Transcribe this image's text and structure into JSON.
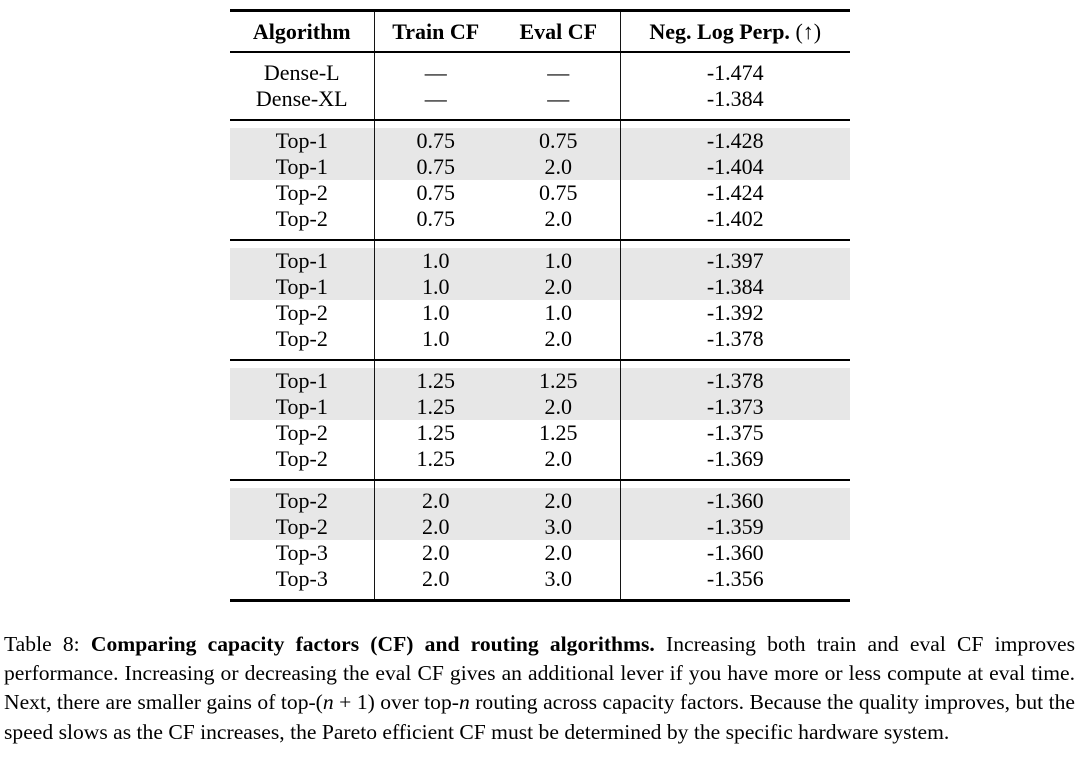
{
  "table": {
    "header": {
      "columns": [
        {
          "label": "Algorithm"
        },
        {
          "label": "Train CF"
        },
        {
          "label": "Eval CF"
        },
        {
          "label": "Neg. Log Perp.",
          "suffix": " (↑)"
        }
      ]
    },
    "groups": [
      {
        "name": "dense-baselines",
        "rows": [
          {
            "algorithm": "Dense-L",
            "train_cf": "—",
            "eval_cf": "—",
            "neg_log_perp": "-1.474",
            "shaded": false
          },
          {
            "algorithm": "Dense-XL",
            "train_cf": "—",
            "eval_cf": "—",
            "neg_log_perp": "-1.384",
            "shaded": false
          }
        ]
      },
      {
        "name": "cf-0.75",
        "rows": [
          {
            "algorithm": "Top-1",
            "train_cf": "0.75",
            "eval_cf": "0.75",
            "neg_log_perp": "-1.428",
            "shaded": true
          },
          {
            "algorithm": "Top-1",
            "train_cf": "0.75",
            "eval_cf": "2.0",
            "neg_log_perp": "-1.404",
            "shaded": true
          },
          {
            "algorithm": "Top-2",
            "train_cf": "0.75",
            "eval_cf": "0.75",
            "neg_log_perp": "-1.424",
            "shaded": false
          },
          {
            "algorithm": "Top-2",
            "train_cf": "0.75",
            "eval_cf": "2.0",
            "neg_log_perp": "-1.402",
            "shaded": false
          }
        ]
      },
      {
        "name": "cf-1.0",
        "rows": [
          {
            "algorithm": "Top-1",
            "train_cf": "1.0",
            "eval_cf": "1.0",
            "neg_log_perp": "-1.397",
            "shaded": true
          },
          {
            "algorithm": "Top-1",
            "train_cf": "1.0",
            "eval_cf": "2.0",
            "neg_log_perp": "-1.384",
            "shaded": true
          },
          {
            "algorithm": "Top-2",
            "train_cf": "1.0",
            "eval_cf": "1.0",
            "neg_log_perp": "-1.392",
            "shaded": false
          },
          {
            "algorithm": "Top-2",
            "train_cf": "1.0",
            "eval_cf": "2.0",
            "neg_log_perp": "-1.378",
            "shaded": false
          }
        ]
      },
      {
        "name": "cf-1.25",
        "rows": [
          {
            "algorithm": "Top-1",
            "train_cf": "1.25",
            "eval_cf": "1.25",
            "neg_log_perp": "-1.378",
            "shaded": true
          },
          {
            "algorithm": "Top-1",
            "train_cf": "1.25",
            "eval_cf": "2.0",
            "neg_log_perp": "-1.373",
            "shaded": true
          },
          {
            "algorithm": "Top-2",
            "train_cf": "1.25",
            "eval_cf": "1.25",
            "neg_log_perp": "-1.375",
            "shaded": false
          },
          {
            "algorithm": "Top-2",
            "train_cf": "1.25",
            "eval_cf": "2.0",
            "neg_log_perp": "-1.369",
            "shaded": false
          }
        ]
      },
      {
        "name": "cf-2.0",
        "rows": [
          {
            "algorithm": "Top-2",
            "train_cf": "2.0",
            "eval_cf": "2.0",
            "neg_log_perp": "-1.360",
            "shaded": true
          },
          {
            "algorithm": "Top-2",
            "train_cf": "2.0",
            "eval_cf": "3.0",
            "neg_log_perp": "-1.359",
            "shaded": true
          },
          {
            "algorithm": "Top-3",
            "train_cf": "2.0",
            "eval_cf": "2.0",
            "neg_log_perp": "-1.360",
            "shaded": false
          },
          {
            "algorithm": "Top-3",
            "train_cf": "2.0",
            "eval_cf": "3.0",
            "neg_log_perp": "-1.356",
            "shaded": false
          }
        ]
      }
    ]
  },
  "caption": {
    "segments": [
      {
        "text": "Table 8: ",
        "style": "normal"
      },
      {
        "text": "Comparing capacity factors (CF) and routing algorithms.",
        "style": "bold"
      },
      {
        "text": " Increasing both train and eval CF improves performance. Increasing or decreasing the eval CF gives an additional lever if you have more or less compute at eval time. Next, there are smaller gains of top-(",
        "style": "normal"
      },
      {
        "text": "n",
        "style": "italic"
      },
      {
        "text": " + 1) over top-",
        "style": "normal"
      },
      {
        "text": "n",
        "style": "italic"
      },
      {
        "text": " routing across capacity factors. Because the quality improves, but the speed slows as the CF increases, the Pareto efficient CF must be determined by the specific hardware system.",
        "style": "normal"
      }
    ]
  },
  "colors": {
    "row_shade": "#e7e7e7",
    "rule": "#000000",
    "text": "#000000"
  }
}
